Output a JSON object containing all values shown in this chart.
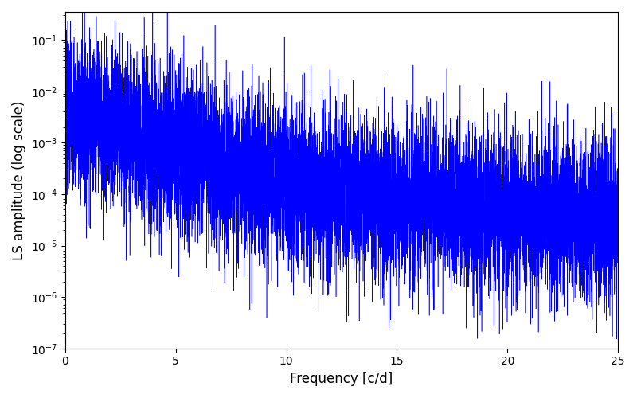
{
  "xlabel": "Frequency [c/d]",
  "ylabel": "LS amplitude (log scale)",
  "line_color": "#0000ff",
  "background_color": "#ffffff",
  "xlim": [
    0,
    25
  ],
  "ylim_low": 1e-07,
  "ylim_high": 0.35,
  "freq_max": 25,
  "n_points": 10000,
  "seed": 7,
  "figsize": [
    8.0,
    5.0
  ],
  "dpi": 100,
  "linewidth": 0.4,
  "xticks": [
    0,
    5,
    10,
    15,
    20,
    25
  ],
  "noise_sigma": 1.8,
  "power_law_amp": 0.004,
  "power_law_exp": 2.2,
  "power_law_knee": 2.5,
  "noise_floor": 5e-06
}
